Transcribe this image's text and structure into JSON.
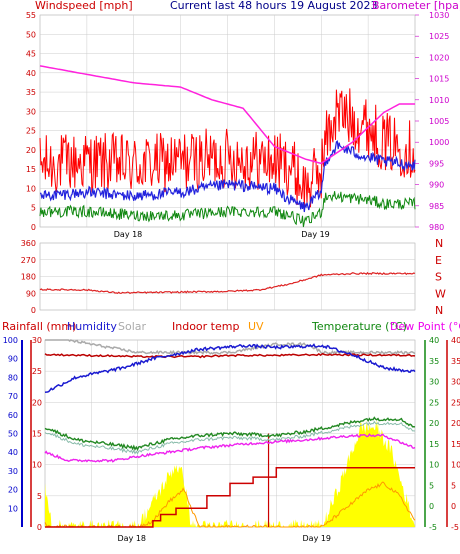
{
  "header": {
    "wind_label": "Windspeed [mph]",
    "title": "Current last 48 hours 19 August 2023",
    "baro_label": "Barometer [hpa]"
  },
  "legend": {
    "rainfall": "Rainfall (mm)",
    "humidity": "Humidity",
    "solar": "Solar",
    "indoor": "Indoor temp",
    "uv": "UV",
    "temperature": "Temperature (°C)",
    "dewpoint": "Dew Point (°C)"
  },
  "colors": {
    "wind_gust": "#ff0000",
    "wind_avg": "#2222dd",
    "wind_low": "#118811",
    "barometer": "#ff22dd",
    "direction": "#dd2222",
    "humidity": "#1a1ad0",
    "solar": "#aaaaaa",
    "indoor": "#bb0000",
    "uv": "#ff9900",
    "solar_fill": "#ffff00",
    "temperature": "#228822",
    "dewpoint": "#ee22ee",
    "rain": "#cc0000",
    "rain_axis": "#0000cc",
    "grid": "#cccccc"
  },
  "chart_data": [
    {
      "type": "line",
      "name_top": "wind_and_pressure",
      "x_tick_labels": [
        "Day 18",
        "Day 19"
      ],
      "y_left": {
        "label": "Windspeed [mph]",
        "ylim": [
          0,
          55
        ],
        "ticks": [
          0,
          5,
          10,
          15,
          20,
          25,
          30,
          35,
          40,
          45,
          50,
          55
        ]
      },
      "y_right": {
        "label": "Barometer [hpa]",
        "ylim": [
          980,
          1030
        ],
        "ticks": [
          980,
          985,
          990,
          995,
          1000,
          1005,
          1010,
          1015,
          1020,
          1025,
          1030
        ]
      },
      "series": [
        {
          "name": "gust",
          "axis": "left",
          "knots": [
            [
              0,
              16
            ],
            [
              6,
              17
            ],
            [
              12,
              16
            ],
            [
              18,
              17
            ],
            [
              24,
              18
            ],
            [
              30,
              17
            ],
            [
              32,
              16
            ],
            [
              34,
              10
            ],
            [
              36,
              15
            ],
            [
              36.5,
              22
            ],
            [
              38,
              30
            ],
            [
              42,
              26
            ],
            [
              44,
              22
            ],
            [
              48,
              20
            ]
          ],
          "noise": 8
        },
        {
          "name": "average",
          "axis": "left",
          "knots": [
            [
              0,
              8
            ],
            [
              6,
              9
            ],
            [
              12,
              8
            ],
            [
              18,
              9
            ],
            [
              24,
              11
            ],
            [
              30,
              10
            ],
            [
              32,
              7
            ],
            [
              34,
              5
            ],
            [
              36,
              9
            ],
            [
              36.5,
              17
            ],
            [
              38,
              21
            ],
            [
              42,
              18
            ],
            [
              44,
              17
            ],
            [
              48,
              16
            ]
          ],
          "noise": 1.5
        },
        {
          "name": "low",
          "axis": "left",
          "knots": [
            [
              0,
              4
            ],
            [
              6,
              4
            ],
            [
              12,
              3
            ],
            [
              18,
              3
            ],
            [
              24,
              4
            ],
            [
              30,
              4
            ],
            [
              32,
              3
            ],
            [
              34,
              1
            ],
            [
              36,
              4
            ],
            [
              36.5,
              8
            ],
            [
              38,
              8
            ],
            [
              42,
              7
            ],
            [
              44,
              6
            ],
            [
              48,
              6
            ]
          ],
          "noise": 1.5
        },
        {
          "name": "barometer",
          "axis": "right",
          "knots": [
            [
              0,
              1018
            ],
            [
              6,
              1016
            ],
            [
              12,
              1014
            ],
            [
              18,
              1013
            ],
            [
              22,
              1010
            ],
            [
              26,
              1008
            ],
            [
              30,
              999
            ],
            [
              34,
              996
            ],
            [
              36,
              995
            ],
            [
              40,
              1000
            ],
            [
              44,
              1007
            ],
            [
              46,
              1009
            ],
            [
              48,
              1009
            ]
          ],
          "noise": 0
        }
      ]
    },
    {
      "type": "line",
      "name_top": "wind_direction",
      "y_left": {
        "ticks": [
          0,
          90,
          180,
          270,
          360
        ],
        "ylim": [
          0,
          360
        ]
      },
      "y_right": {
        "ticks": [
          "N",
          "W",
          "S",
          "E",
          "N"
        ]
      },
      "series": [
        {
          "name": "direction",
          "knots": [
            [
              0,
              110
            ],
            [
              6,
              108
            ],
            [
              10,
              92
            ],
            [
              16,
              95
            ],
            [
              24,
              100
            ],
            [
              28,
              108
            ],
            [
              32,
              140
            ],
            [
              36,
              188
            ],
            [
              40,
              196
            ],
            [
              48,
              196
            ]
          ],
          "noise": 4
        }
      ]
    },
    {
      "type": "line",
      "name_top": "temperature_humidity_solar",
      "x_tick_labels": [
        "Day 18",
        "Day 19"
      ],
      "y_rain": {
        "ticks": [
          0,
          5,
          10,
          15,
          20,
          25,
          30
        ],
        "ylim": [
          0,
          30
        ]
      },
      "y_humidity": {
        "ticks": [
          10,
          20,
          30,
          40,
          50,
          60,
          70,
          80,
          90,
          100
        ],
        "ylim": [
          0,
          100
        ]
      },
      "y_temp": {
        "ticks": [
          -5,
          0,
          5,
          10,
          15,
          20,
          25,
          30,
          35,
          40
        ],
        "ylim": [
          -5,
          40
        ]
      },
      "series": [
        {
          "name": "humidity",
          "knots": [
            [
              0,
              72
            ],
            [
              4,
              80
            ],
            [
              10,
              85
            ],
            [
              14,
              90
            ],
            [
              20,
              95
            ],
            [
              26,
              97
            ],
            [
              30,
              96
            ],
            [
              36,
              97
            ],
            [
              40,
              92
            ],
            [
              44,
              85
            ],
            [
              48,
              83
            ]
          ],
          "noise": 0.8
        },
        {
          "name": "solar",
          "knots": [
            [
              0,
              41
            ],
            [
              6,
              39
            ],
            [
              12,
              37
            ],
            [
              18,
              37
            ],
            [
              24,
              37
            ],
            [
              30,
              39
            ],
            [
              34,
              39
            ],
            [
              36,
              37
            ],
            [
              40,
              37
            ],
            [
              48,
              37
            ]
          ],
          "noise": 0.3
        },
        {
          "name": "indoor",
          "knots": [
            [
              0,
              36.5
            ],
            [
              8,
              36.2
            ],
            [
              12,
              36
            ],
            [
              20,
              36
            ],
            [
              24,
              36.3
            ],
            [
              30,
              36.3
            ],
            [
              36,
              36.5
            ],
            [
              48,
              36.3
            ]
          ],
          "noise": 0.2
        },
        {
          "name": "temperature",
          "knots": [
            [
              0,
              19
            ],
            [
              4,
              16
            ],
            [
              8,
              15
            ],
            [
              12,
              14
            ],
            [
              16,
              16
            ],
            [
              20,
              17
            ],
            [
              24,
              17.5
            ],
            [
              30,
              17
            ],
            [
              34,
              18
            ],
            [
              38,
              19.5
            ],
            [
              42,
              21
            ],
            [
              46,
              21
            ],
            [
              48,
              19
            ]
          ],
          "noise": 0.4
        },
        {
          "name": "dewpoint",
          "knots": [
            [
              0,
              13
            ],
            [
              3,
              11
            ],
            [
              6,
              11
            ],
            [
              9,
              11
            ],
            [
              12,
              12
            ],
            [
              16,
              13
            ],
            [
              20,
              14
            ],
            [
              26,
              15
            ],
            [
              30,
              15.5
            ],
            [
              34,
              16
            ],
            [
              40,
              17
            ],
            [
              44,
              17
            ],
            [
              48,
              14
            ]
          ],
          "noise": 0.3
        },
        {
          "name": "rain",
          "knots": [
            [
              0,
              0
            ],
            [
              12,
              0
            ],
            [
              14,
              1
            ],
            [
              15,
              2
            ],
            [
              17,
              3
            ],
            [
              21,
              5
            ],
            [
              24,
              7
            ],
            [
              27,
              8
            ],
            [
              30,
              9.5
            ],
            [
              36,
              9.5
            ],
            [
              48,
              9.5
            ]
          ],
          "noise": 0
        },
        {
          "name": "uv",
          "knots": [
            [
              0,
              0.5
            ],
            [
              1,
              0
            ],
            [
              12,
              0
            ],
            [
              14,
              1
            ],
            [
              16,
              4
            ],
            [
              18,
              6
            ],
            [
              19,
              3
            ],
            [
              20,
              0
            ],
            [
              36,
              0
            ],
            [
              38,
              2
            ],
            [
              42,
              6
            ],
            [
              44,
              7
            ],
            [
              46,
              5
            ],
            [
              48,
              1
            ]
          ],
          "noise": 0.3
        },
        {
          "name": "solar_fill",
          "knots": [
            [
              0,
              6
            ],
            [
              1,
              0
            ],
            [
              12,
              0
            ],
            [
              13,
              2
            ],
            [
              15,
              6
            ],
            [
              17,
              10
            ],
            [
              18,
              8
            ],
            [
              19,
              0
            ],
            [
              36,
              0
            ],
            [
              38,
              6
            ],
            [
              41,
              16
            ],
            [
              43,
              16
            ],
            [
              45,
              12
            ],
            [
              47,
              4
            ],
            [
              48,
              0
            ]
          ],
          "noise": 1.2
        }
      ]
    }
  ]
}
